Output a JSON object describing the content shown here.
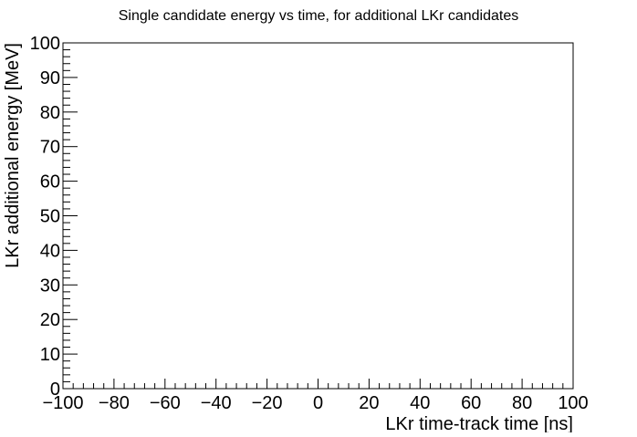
{
  "chart_data": {
    "type": "scatter",
    "title": "Single candidate energy vs time, for additional LKr candidates",
    "xlabel": "LKr time-track time [ns]",
    "ylabel": "LKr additional energy [MeV]",
    "xlim": [
      -100,
      100
    ],
    "ylim": [
      0,
      100
    ],
    "x_ticks": [
      -100,
      -80,
      -60,
      -40,
      -20,
      0,
      20,
      40,
      60,
      80,
      100
    ],
    "y_ticks": [
      0,
      10,
      20,
      30,
      40,
      50,
      60,
      70,
      80,
      90,
      100
    ],
    "x_tick_labels": [
      "−100",
      "−80",
      "−60",
      "−40",
      "−20",
      "0",
      "20",
      "40",
      "60",
      "80",
      "100"
    ],
    "y_tick_labels": [
      "0",
      "10",
      "20",
      "30",
      "40",
      "50",
      "60",
      "70",
      "80",
      "90",
      "100"
    ],
    "x": [],
    "y": [],
    "grid": false,
    "legend": "none",
    "colors": {
      "frame": "#000000",
      "background": "#ffffff"
    }
  }
}
